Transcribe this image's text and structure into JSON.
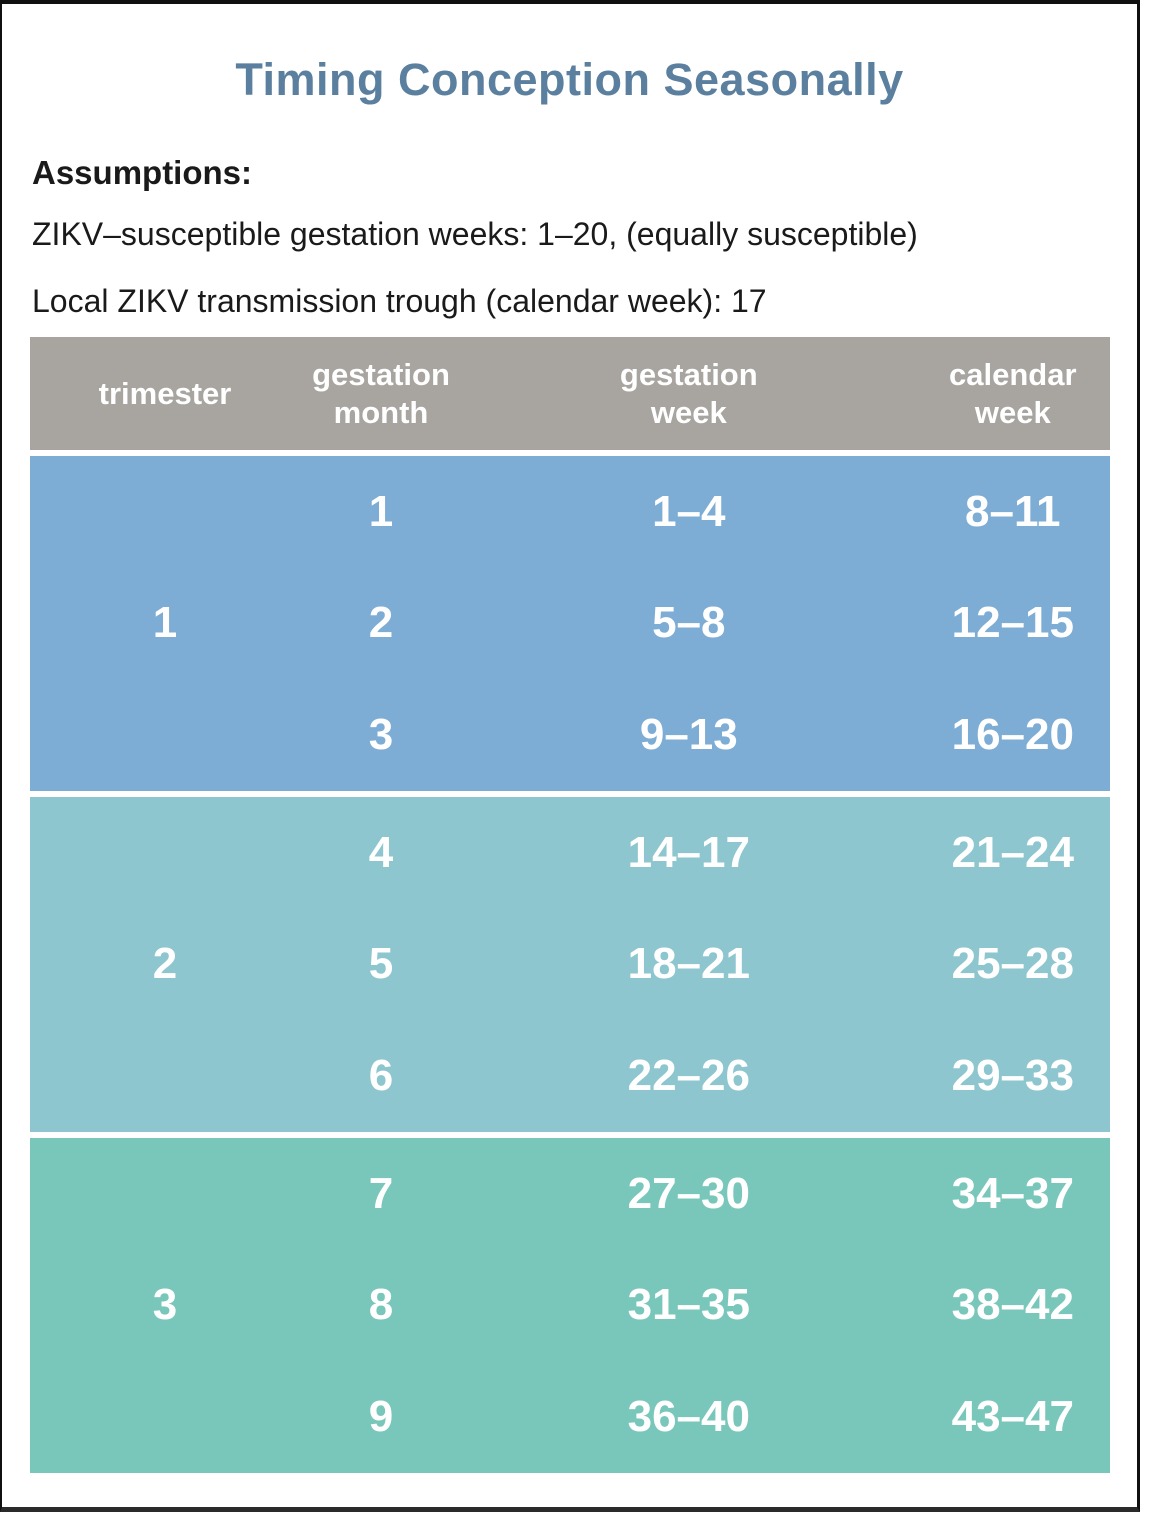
{
  "title": "Timing Conception Seasonally",
  "assumptions": {
    "heading": "Assumptions:",
    "lines": [
      "ZIKV–susceptible gestation weeks: 1–20, (equally susceptible)",
      "Local ZIKV transmission trough (calendar week): 17"
    ]
  },
  "colors": {
    "title": "#5b7f9e",
    "header_bg": "#a8a5a1",
    "trimester1_bg": "#7dacd4",
    "trimester2_bg": "#8dc6ce",
    "trimester3_bg": "#79c7ba",
    "cell_text": "#ffffff",
    "body_text": "#1a1a1a",
    "frame_border": "#101010"
  },
  "chart_data": {
    "type": "table",
    "title": "Timing Conception Seasonally",
    "column_headers": [
      [
        "trimester"
      ],
      [
        "gestation",
        "month"
      ],
      [
        "gestation",
        "week"
      ],
      [
        "calendar",
        "week"
      ]
    ],
    "trimester_blocks": [
      {
        "trimester": "1",
        "color": "#7dacd4",
        "rows": [
          {
            "gestation_month": "1",
            "gestation_week": "1–4",
            "calendar_week": "8–11"
          },
          {
            "gestation_month": "2",
            "gestation_week": "5–8",
            "calendar_week": "12–15"
          },
          {
            "gestation_month": "3",
            "gestation_week": "9–13",
            "calendar_week": "16–20"
          }
        ]
      },
      {
        "trimester": "2",
        "color": "#8dc6ce",
        "rows": [
          {
            "gestation_month": "4",
            "gestation_week": "14–17",
            "calendar_week": "21–24"
          },
          {
            "gestation_month": "5",
            "gestation_week": "18–21",
            "calendar_week": "25–28"
          },
          {
            "gestation_month": "6",
            "gestation_week": "22–26",
            "calendar_week": "29–33"
          }
        ]
      },
      {
        "trimester": "3",
        "color": "#79c7ba",
        "rows": [
          {
            "gestation_month": "7",
            "gestation_week": "27–30",
            "calendar_week": "34–37"
          },
          {
            "gestation_month": "8",
            "gestation_week": "31–35",
            "calendar_week": "38–42"
          },
          {
            "gestation_month": "9",
            "gestation_week": "36–40",
            "calendar_week": "43–47"
          }
        ]
      }
    ]
  }
}
